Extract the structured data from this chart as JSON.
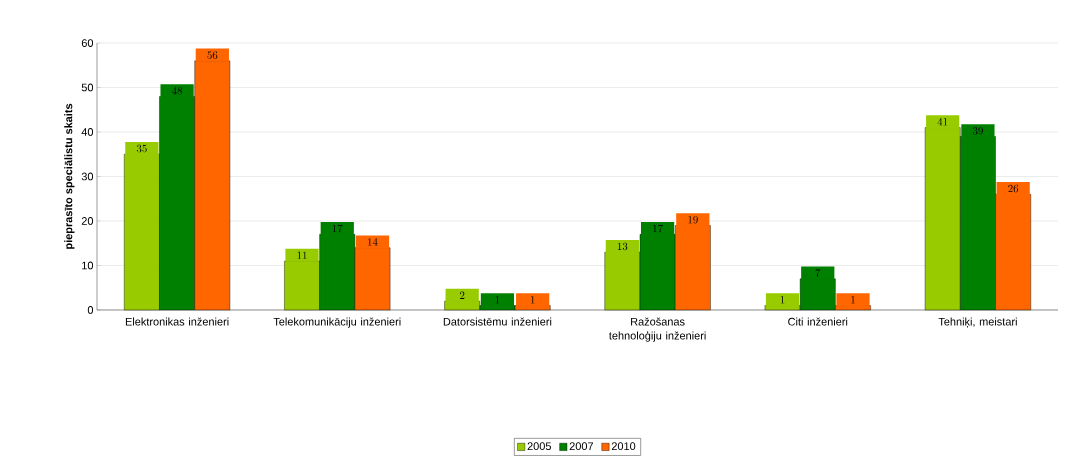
{
  "chart_data": {
    "type": "bar",
    "ylabel": "pieprasīto speciālistu skaits",
    "categories": [
      "Elektronikas inženieri",
      "Telekomunikāciju inženieri",
      "Datorsistēmu inženieri",
      "Ražošanas tehnoloģiju inženieri",
      "Citi inženieri",
      "Tehniķi, meistari"
    ],
    "series": [
      {
        "name": "2005",
        "color": "#99cc00",
        "values": [
          35,
          11,
          2,
          13,
          1,
          41
        ]
      },
      {
        "name": "2007",
        "color": "#008000",
        "values": [
          48,
          17,
          1,
          17,
          7,
          39
        ]
      },
      {
        "name": "2010",
        "color": "#ff6600",
        "values": [
          56,
          14,
          1,
          19,
          1,
          26
        ]
      }
    ],
    "ylim": [
      0,
      60
    ],
    "yticks": [
      0,
      10,
      20,
      30,
      40,
      50,
      60
    ],
    "grid": "y",
    "legend": "bottom",
    "data_labels": true
  }
}
